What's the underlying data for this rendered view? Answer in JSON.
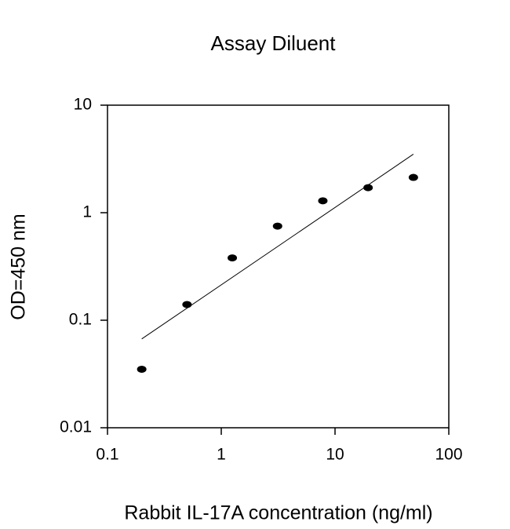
{
  "chart_data": {
    "type": "scatter",
    "title": "Assay Diluent",
    "xlabel": "Rabbit IL-17A concentration (ng/ml)",
    "ylabel": "OD=450 nm",
    "x": [
      0.2,
      0.5,
      1.25,
      3.125,
      7.8125,
      19.53,
      48.83
    ],
    "values": [
      0.035,
      0.14,
      0.38,
      0.75,
      1.29,
      1.71,
      2.13
    ],
    "color": "#000000",
    "trendline": {
      "x": [
        0.2,
        48.83
      ],
      "values": [
        0.067,
        3.5
      ]
    },
    "xscale": "log",
    "yscale": "log",
    "xlim": [
      0.1,
      100
    ],
    "ylim": [
      0.01,
      10
    ],
    "xticks": [
      0.1,
      1,
      10,
      100
    ],
    "yticks": [
      0.01,
      0.1,
      1,
      10
    ]
  }
}
